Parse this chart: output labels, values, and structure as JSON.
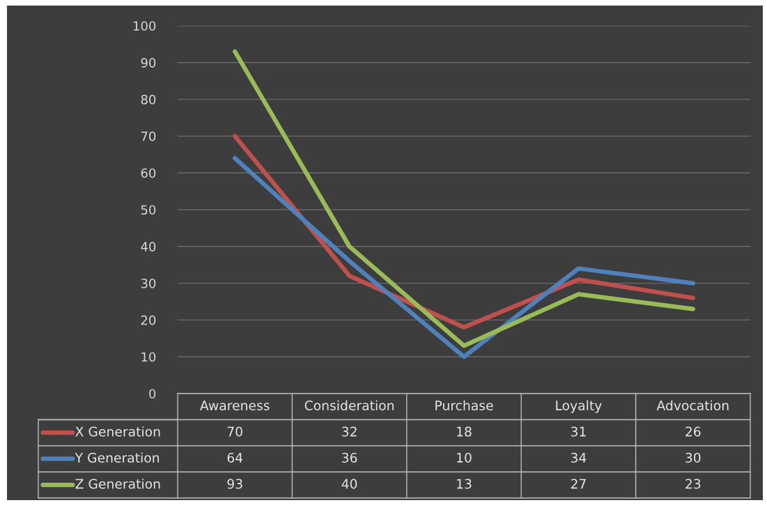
{
  "chart_data": {
    "type": "line",
    "categories": [
      "Awareness",
      "Consideration",
      "Purchase",
      "Loyalty",
      "Advocation"
    ],
    "series": [
      {
        "name": "X Generation",
        "color": "#c0504d",
        "values": [
          70,
          32,
          18,
          31,
          26
        ]
      },
      {
        "name": "Y Generation",
        "color": "#4f81bd",
        "values": [
          64,
          36,
          10,
          34,
          30
        ]
      },
      {
        "name": "Z Generation",
        "color": "#9bbb59",
        "values": [
          93,
          40,
          13,
          27,
          23
        ]
      }
    ],
    "ylim": [
      0,
      100
    ],
    "yticks": [
      0,
      10,
      20,
      30,
      40,
      50,
      60,
      70,
      80,
      90,
      100
    ],
    "grid": "y",
    "data_labels": true,
    "legend": "bottom",
    "marker": "none",
    "line_style": "solid"
  }
}
